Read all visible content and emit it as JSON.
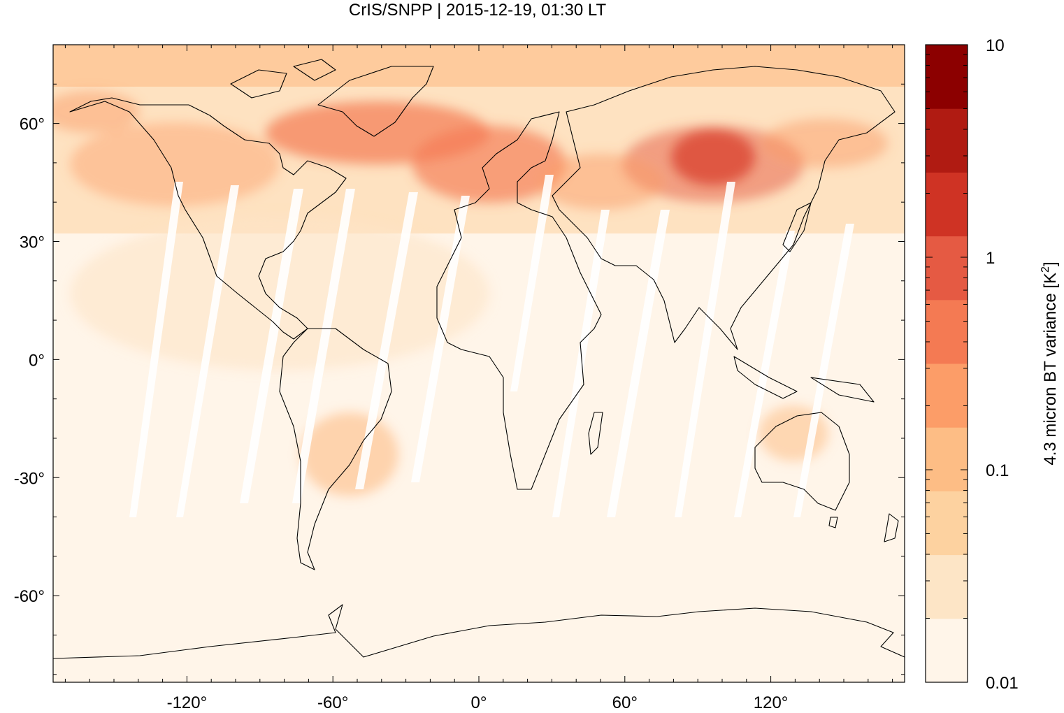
{
  "title": "CrIS/SNPP | 2015-12-19, 01:30 LT",
  "map": {
    "projection": "equirectangular",
    "lon_range": [
      -175,
      175
    ],
    "lat_range": [
      -82,
      80
    ],
    "x_ticks": [
      {
        "value": -120,
        "label": "-120°"
      },
      {
        "value": -60,
        "label": "-60°"
      },
      {
        "value": 0,
        "label": "0°"
      },
      {
        "value": 60,
        "label": "60°"
      },
      {
        "value": 120,
        "label": "120°"
      }
    ],
    "y_ticks": [
      {
        "value": 60,
        "label": "60°"
      },
      {
        "value": 30,
        "label": "30°"
      },
      {
        "value": 0,
        "label": "0°"
      },
      {
        "value": -30,
        "label": "-30°"
      },
      {
        "value": -60,
        "label": "-60°"
      }
    ],
    "field_description": "4.3 micron brightness temperature variance; high values over northern mid/high latitudes (Europe, Siberia, Greenland), low values over tropics and southern hemisphere; white gaps between satellite swaths"
  },
  "colorbar": {
    "label_main": "4.3 micron BT variance [K",
    "label_sup": "2",
    "label_end": "]",
    "scale": "log",
    "range": [
      0.01,
      10
    ],
    "tick_labels": [
      {
        "value": 10,
        "label": "10"
      },
      {
        "value": 1,
        "label": "1"
      },
      {
        "value": 0.1,
        "label": "0.1"
      },
      {
        "value": 0.01,
        "label": "0.01"
      }
    ],
    "colors": [
      "#fff5e9",
      "#fde5c6",
      "#fdd2a0",
      "#fdbd85",
      "#fc9d68",
      "#f47a53",
      "#e55a43",
      "#cf3324",
      "#b01b12",
      "#8c0000"
    ]
  }
}
